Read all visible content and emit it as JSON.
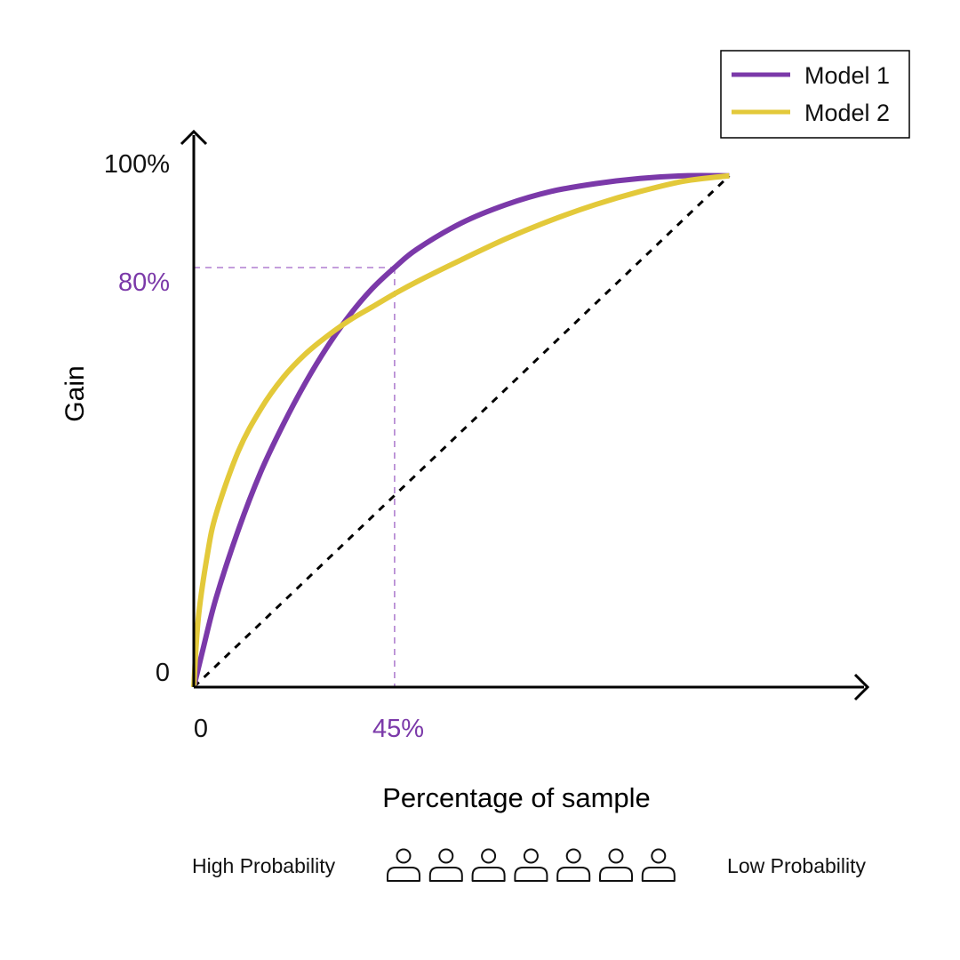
{
  "chart_data": {
    "type": "line",
    "title": "",
    "xlabel": "Percentage of sample",
    "ylabel": "Gain",
    "x_tick_labels": [
      "0",
      "45%"
    ],
    "y_tick_labels": [
      "0",
      "80%",
      "100%"
    ],
    "xlim": [
      0,
      150
    ],
    "ylim": [
      0,
      100
    ],
    "legend_position": "top-right",
    "grid": false,
    "series": [
      {
        "name": "Model 1",
        "color": "#7b39a9",
        "x": [
          0,
          2,
          5,
          10,
          15,
          20,
          25,
          30,
          35,
          40,
          45,
          50,
          60,
          70,
          80,
          90,
          100,
          110,
          120
        ],
        "y": [
          0,
          7,
          17,
          30,
          41,
          50,
          58,
          65,
          71,
          76,
          80,
          83.5,
          88.5,
          92,
          94.5,
          96,
          97,
          97.5,
          97.5
        ]
      },
      {
        "name": "Model 2",
        "color": "#e3c93a",
        "x": [
          0,
          1,
          3,
          5,
          10,
          15,
          20,
          25,
          30,
          35,
          40,
          45,
          50,
          60,
          70,
          80,
          90,
          100,
          110,
          120
        ],
        "y": [
          0,
          13,
          25,
          33,
          45,
          53,
          59,
          63.5,
          67,
          70,
          72.5,
          75,
          77.3,
          81.5,
          85.5,
          89,
          92,
          94.5,
          96.5,
          97.5
        ]
      },
      {
        "name": "",
        "color": "#000000",
        "dashed": true,
        "x": [
          0,
          120
        ],
        "y": [
          0,
          97.5
        ]
      }
    ],
    "annotations": [
      {
        "type": "guide",
        "x": 45,
        "y": 80,
        "color": "#b07fd0",
        "x_label": "45%",
        "y_label": "80%",
        "label_color": "#7b39a9"
      }
    ],
    "footer": {
      "left": "High Probability",
      "right": "Low Probability",
      "icon_count": 7,
      "icon": "person-icon"
    }
  }
}
